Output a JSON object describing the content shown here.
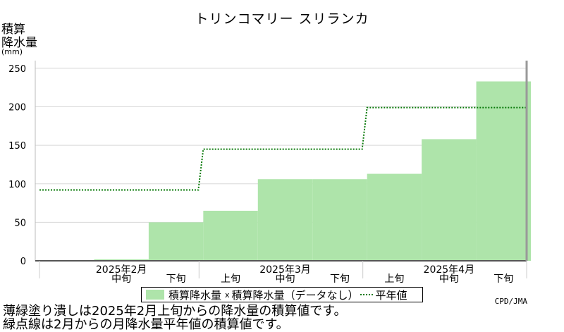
{
  "title": "トリンコマリー スリランカ",
  "ylabel_lines": [
    "積算",
    "降水量",
    "(mm)"
  ],
  "credit": "CPD/JMA",
  "legend": {
    "bar_label": "積算降水量",
    "missing_label": "積算降水量（データなし）",
    "line_label": "平年値",
    "missing_mark": "x"
  },
  "notes": [
    "薄緑塗り潰しは2025年2月上旬からの降水量の積算値です。",
    "緑点線は2月からの月降水量平年値の積算値です。"
  ],
  "colors": {
    "bar": "#aee4aa",
    "normal_line": "#0a7a0a",
    "frame": "#999999",
    "grid": "#d8d8d8"
  },
  "chart_data": {
    "type": "bar",
    "categories": [
      "2025年2月上旬",
      "2025年2月中旬",
      "2025年2月下旬",
      "2025年3月上旬",
      "2025年3月中旬",
      "2025年3月下旬",
      "2025年4月上旬",
      "2025年4月中旬",
      "2025年4月下旬"
    ],
    "tick_labels": [
      "",
      "中旬",
      "下旬",
      "上旬",
      "中旬",
      "下旬",
      "上旬",
      "中旬",
      "下旬"
    ],
    "month_labels": [
      "2025年2月",
      "2025年3月",
      "2025年4月"
    ],
    "series": [
      {
        "name": "積算降水量",
        "values": [
          null,
          2,
          50,
          65,
          106,
          106,
          113,
          158,
          233
        ]
      },
      {
        "name": "平年値",
        "monthly_steps": [
          92,
          145,
          199
        ]
      }
    ],
    "ylim": [
      0,
      260
    ],
    "yticks": [
      0,
      50,
      100,
      150,
      200,
      250
    ],
    "grid": true
  }
}
